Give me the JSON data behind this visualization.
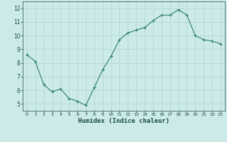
{
  "x": [
    0,
    1,
    2,
    3,
    4,
    5,
    6,
    7,
    8,
    9,
    10,
    11,
    12,
    13,
    14,
    15,
    16,
    17,
    18,
    19,
    20,
    21,
    22,
    23
  ],
  "y": [
    8.6,
    8.1,
    6.4,
    5.9,
    6.1,
    5.4,
    5.2,
    4.9,
    6.2,
    7.5,
    8.5,
    9.7,
    10.2,
    10.4,
    10.6,
    11.1,
    11.5,
    11.5,
    11.9,
    11.5,
    10.0,
    9.7,
    9.6,
    9.4
  ],
  "xlabel": "Humidex (Indice chaleur)",
  "xlim_lo": -0.5,
  "xlim_hi": 23.5,
  "ylim_lo": 4.5,
  "ylim_hi": 12.5,
  "yticks": [
    5,
    6,
    7,
    8,
    9,
    10,
    11,
    12
  ],
  "xticks": [
    0,
    1,
    2,
    3,
    4,
    5,
    6,
    7,
    8,
    9,
    10,
    11,
    12,
    13,
    14,
    15,
    16,
    17,
    18,
    19,
    20,
    21,
    22,
    23
  ],
  "line_color": "#2e7d6e",
  "marker": "+",
  "bg_color": "#cceae8",
  "grid_color": "#add5d2",
  "tick_label_color": "#1a4a44",
  "xlabel_color": "#1a4a44"
}
